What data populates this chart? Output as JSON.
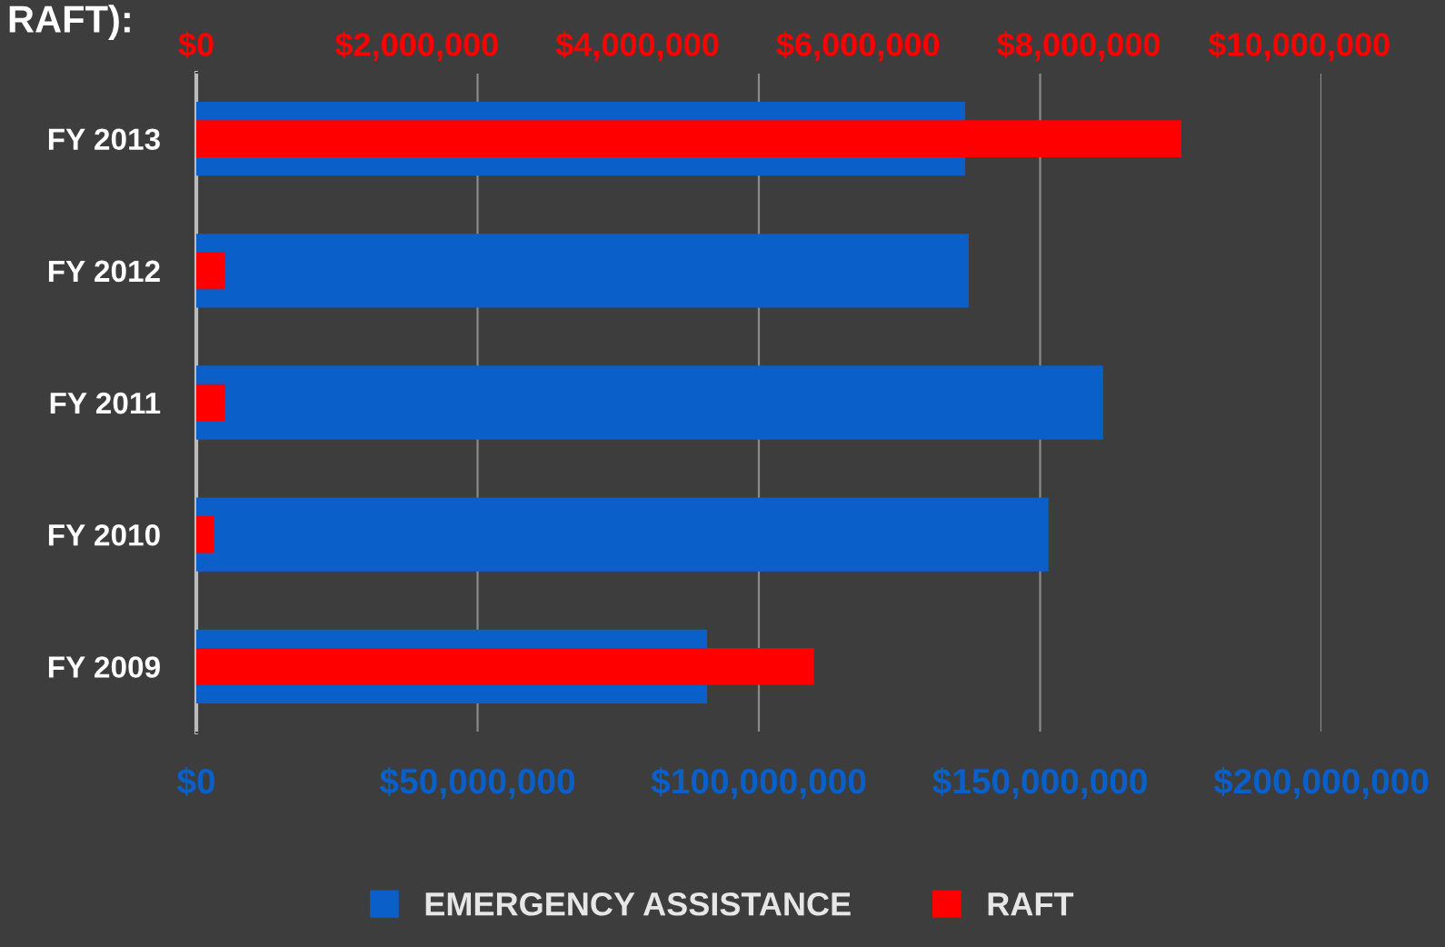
{
  "chart_data": {
    "type": "bar",
    "orientation": "horizontal",
    "title": "RAFT):",
    "categories": [
      "FY 2013",
      "FY 2012",
      "FY 2011",
      "FY 2010",
      "FY 2009"
    ],
    "series": [
      {
        "name": "EMERGENCY ASSISTANCE",
        "color": "#0a5fc8",
        "values": [
          136700000,
          137300000,
          161200000,
          151500000,
          90800000
        ]
      },
      {
        "name": "RAFT",
        "color": "#ff0000",
        "axis": "x2",
        "values": [
          8930000,
          260000,
          260000,
          160000,
          5600000
        ]
      }
    ],
    "xlim": [
      0,
      200000000
    ],
    "xticks": [
      {
        "value": 0,
        "label": "$0"
      },
      {
        "value": 50000000,
        "label": "$50,000,000"
      },
      {
        "value": 100000000,
        "label": "$100,000,000"
      },
      {
        "value": 150000000,
        "label": "$150,000,000"
      },
      {
        "value": 200000000,
        "label": "$200,000,000"
      }
    ],
    "x2lim": [
      0,
      10200000
    ],
    "x2ticks": [
      {
        "value": 0,
        "label": "$0"
      },
      {
        "value": 2000000,
        "label": "$2,000,000"
      },
      {
        "value": 4000000,
        "label": "$4,000,000"
      },
      {
        "value": 6000000,
        "label": "$6,000,000"
      },
      {
        "value": 8000000,
        "label": "$8,000,000"
      },
      {
        "value": 10000000,
        "label": "$10,000,000"
      }
    ],
    "grid": "x",
    "legend": "bottom"
  }
}
